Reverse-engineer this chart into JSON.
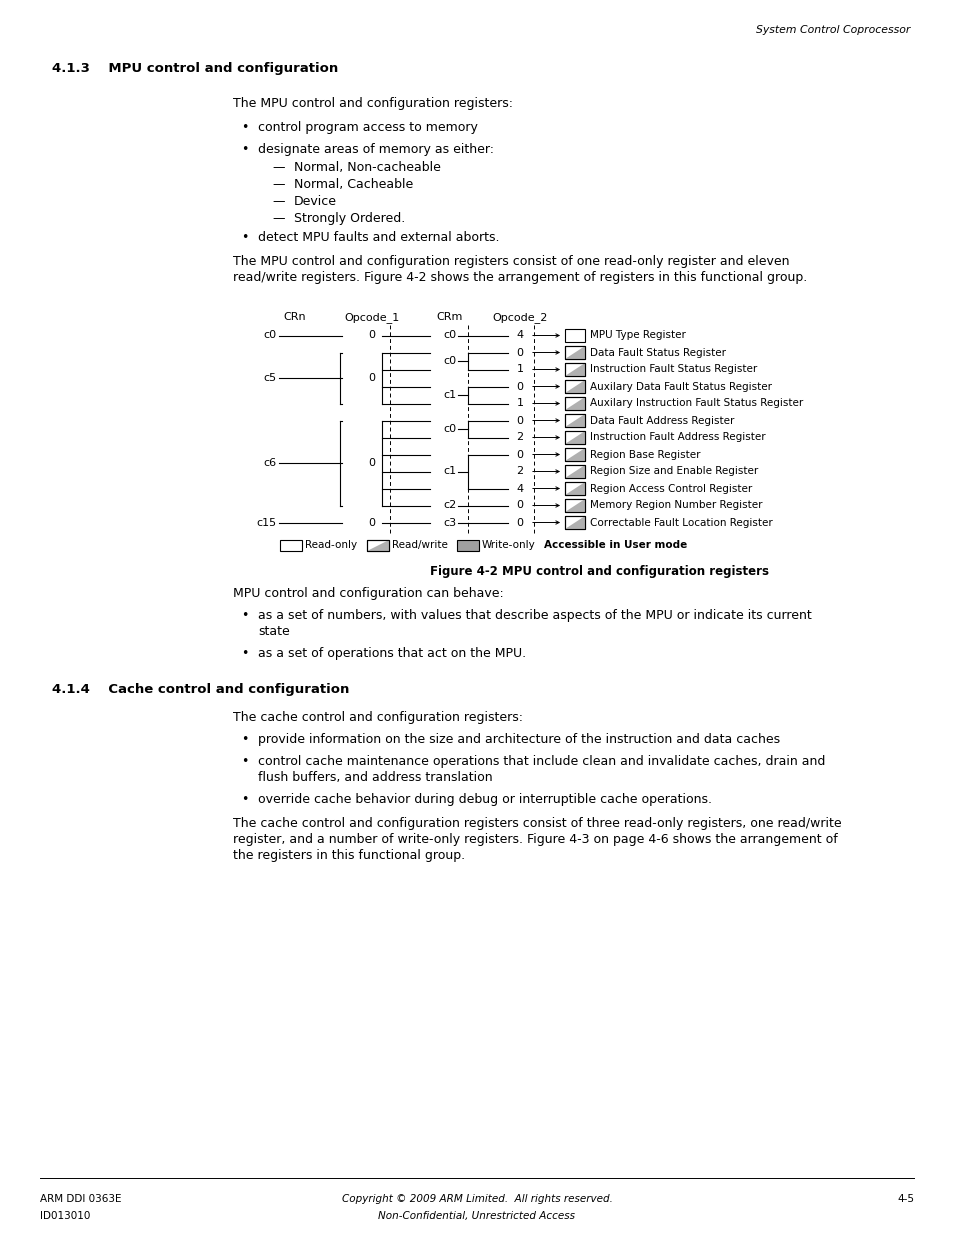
{
  "page_header": "System Control Coprocessor",
  "section_413_title": "4.1.3    MPU control and configuration",
  "section_413_body1": "The MPU control and configuration registers:",
  "section_413_bullet1": "control program access to memory",
  "section_413_bullet2": "designate areas of memory as either:",
  "section_413_subbullets": [
    "Normal, Non-cacheable",
    "Normal, Cacheable",
    "Device",
    "Strongly Ordered."
  ],
  "section_413_bullet3": "detect MPU faults and external aborts.",
  "section_413_body2a": "The MPU control and configuration registers consist of one read-only register and eleven",
  "section_413_body2b": "read/write registers. Figure 4-2 shows the arrangement of registers in this functional group.",
  "figure_caption": "Figure 4-2 MPU control and configuration registers",
  "registers": [
    {
      "crn": "c0",
      "op1": "0",
      "crm": "c0",
      "op2": "4",
      "name": "MPU Type Register",
      "rtype": "read-only"
    },
    {
      "crn": "c5",
      "op1": "0",
      "crm": "c0",
      "op2": "0",
      "name": "Data Fault Status Register",
      "rtype": "read-write"
    },
    {
      "crn": null,
      "op1": null,
      "crm": null,
      "op2": "1",
      "name": "Instruction Fault Status Register",
      "rtype": "read-write"
    },
    {
      "crn": null,
      "op1": null,
      "crm": "c1",
      "op2": "0",
      "name": "Auxilary Data Fault Status Register",
      "rtype": "read-write"
    },
    {
      "crn": null,
      "op1": null,
      "crm": null,
      "op2": "1",
      "name": "Auxilary Instruction Fault Status Register",
      "rtype": "read-write"
    },
    {
      "crn": "c6",
      "op1": "0",
      "crm": "c0",
      "op2": "0",
      "name": "Data Fault Address Register",
      "rtype": "read-write"
    },
    {
      "crn": null,
      "op1": null,
      "crm": null,
      "op2": "2",
      "name": "Instruction Fault Address Register",
      "rtype": "read-write"
    },
    {
      "crn": null,
      "op1": null,
      "crm": "c1",
      "op2": "0",
      "name": "Region Base Register",
      "rtype": "read-write"
    },
    {
      "crn": null,
      "op1": null,
      "crm": null,
      "op2": "2",
      "name": "Region Size and Enable Register",
      "rtype": "read-write"
    },
    {
      "crn": null,
      "op1": null,
      "crm": null,
      "op2": "4",
      "name": "Region Access Control Register",
      "rtype": "read-write"
    },
    {
      "crn": null,
      "op1": null,
      "crm": "c2",
      "op2": "0",
      "name": "Memory Region Number Register",
      "rtype": "read-write"
    },
    {
      "crn": "c15",
      "op1": "0",
      "crm": "c3",
      "op2": "0",
      "name": "Correctable Fault Location Register",
      "rtype": "read-write"
    }
  ],
  "crn_groups": [
    {
      "label": "c0",
      "rows": [
        0
      ]
    },
    {
      "label": "c5",
      "rows": [
        1,
        2,
        3,
        4
      ]
    },
    {
      "label": "c6",
      "rows": [
        5,
        6,
        7,
        8,
        9,
        10
      ]
    },
    {
      "label": "c15",
      "rows": [
        11
      ]
    }
  ],
  "crm_groups": [
    {
      "label": "c0",
      "rows": [
        0
      ]
    },
    {
      "label": "c0",
      "rows": [
        1,
        2
      ]
    },
    {
      "label": "c1",
      "rows": [
        3,
        4
      ]
    },
    {
      "label": "c0",
      "rows": [
        5,
        6
      ]
    },
    {
      "label": "c1",
      "rows": [
        7,
        8,
        9
      ]
    },
    {
      "label": "c2",
      "rows": [
        10
      ]
    },
    {
      "label": "c3",
      "rows": [
        11
      ]
    }
  ],
  "section_413_after1": "MPU control and configuration can behave:",
  "section_413_after_b1a": "as a set of numbers, with values that describe aspects of the MPU or indicate its current",
  "section_413_after_b1b": "state",
  "section_413_after_b2": "as a set of operations that act on the MPU.",
  "section_414_title": "4.1.4    Cache control and configuration",
  "section_414_body1": "The cache control and configuration registers:",
  "section_414_bullet1": "provide information on the size and architecture of the instruction and data caches",
  "section_414_bullet2a": "control cache maintenance operations that include clean and invalidate caches, drain and",
  "section_414_bullet2b": "flush buffers, and address translation",
  "section_414_bullet3": "override cache behavior during debug or interruptible cache operations.",
  "section_414_body2a": "The cache control and configuration registers consist of three read-only registers, one read/write",
  "section_414_body2b": "register, and a number of write-only registers. Figure 4-3 on page 4-6 shows the arrangement of",
  "section_414_body2c": "the registers in this functional group.",
  "footer_left1": "ARM DDI 0363E",
  "footer_left2": "ID013010",
  "footer_center1": "Copyright © 2009 ARM Limited.  All rights reserved.",
  "footer_center2": "Non-Confidential, Unrestricted Access",
  "footer_right": "4-5"
}
